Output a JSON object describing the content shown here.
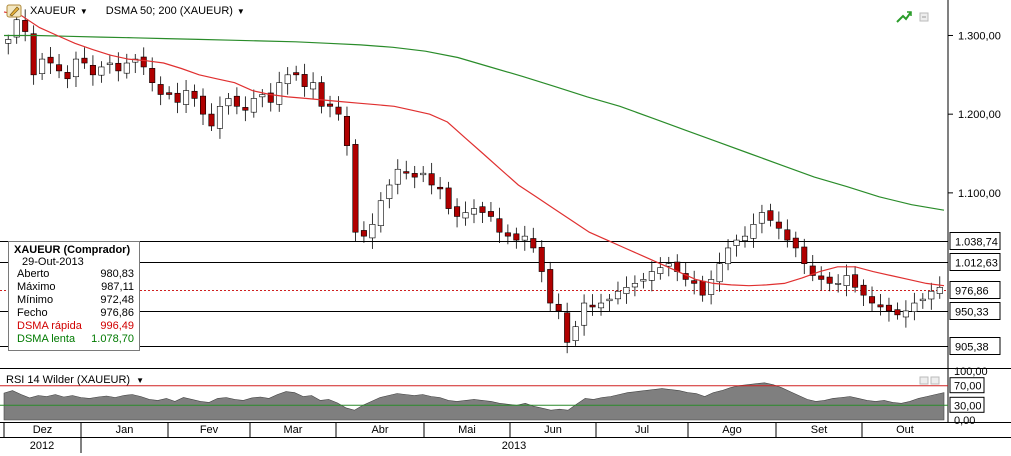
{
  "toolbar": {
    "symbol": "XAUEUR",
    "indicator": "DSMA 50; 200 (XAUEUR)"
  },
  "info_box": {
    "title": "XAUEUR (Comprador)",
    "date": "29-Out-2013",
    "rows": [
      {
        "label": "Aberto",
        "value": "980,83"
      },
      {
        "label": "Máximo",
        "value": "987,11"
      },
      {
        "label": "Mínimo",
        "value": "972,48"
      },
      {
        "label": "Fecho",
        "value": "976,86"
      },
      {
        "label": "DSMA rápida",
        "value": "996,49"
      },
      {
        "label": "DSMA lenta",
        "value": "1.078,70"
      }
    ]
  },
  "rsi": {
    "title": "RSI 14 Wilder (XAUEUR)",
    "axis_labels": [
      "100,00",
      "70,00",
      "30,00",
      "0,00"
    ]
  },
  "colors": {
    "fast_ma": "#e03030",
    "slow_ma": "#2a8c2a",
    "up_candle": "#ffffff",
    "down_candle": "#b00000",
    "rsi_fill": "#7f7f7f"
  },
  "chart_data": {
    "type": "candlestick",
    "symbol": "XAUEUR",
    "y_axis_labels": [
      "1.300,00",
      "1.200,00",
      "1.100,00"
    ],
    "ylim": [
      880,
      1340
    ],
    "price_levels": [
      {
        "label": "1.038,74",
        "value": 1038.74
      },
      {
        "label": "1.012,63",
        "value": 1012.63
      },
      {
        "label": "976,86",
        "value": 976.86
      },
      {
        "label": "950,33",
        "value": 950.33
      },
      {
        "label": "905,38",
        "value": 905.38
      }
    ],
    "x_month_labels": [
      "Dez",
      "Jan",
      "Fev",
      "Mar",
      "Abr",
      "Mai",
      "Jun",
      "Jul",
      "Ago",
      "Set",
      "Out"
    ],
    "x_year_labels": [
      "2012",
      "2013"
    ],
    "close_path": [
      1295,
      1320,
      1305,
      1250,
      1270,
      1265,
      1255,
      1245,
      1270,
      1265,
      1250,
      1260,
      1265,
      1255,
      1265,
      1270,
      1260,
      1240,
      1225,
      1225,
      1215,
      1230,
      1220,
      1200,
      1185,
      1210,
      1220,
      1210,
      1205,
      1220,
      1225,
      1215,
      1240,
      1250,
      1250,
      1235,
      1240,
      1210,
      1210,
      1200,
      1160,
      1050,
      1045,
      1060,
      1090,
      1110,
      1130,
      1125,
      1120,
      1125,
      1110,
      1105,
      1080,
      1070,
      1075,
      1080,
      1075,
      1070,
      1050,
      1045,
      1040,
      1045,
      1030,
      1000,
      960,
      950,
      910,
      930,
      960,
      955,
      960,
      965,
      975,
      980,
      985,
      990,
      1000,
      1005,
      1010,
      1000,
      990,
      985,
      970,
      990,
      1010,
      1030,
      1040,
      1045,
      1060,
      1075,
      1065,
      1055,
      1040,
      1030,
      1010,
      995,
      990,
      985,
      985,
      995,
      980,
      970,
      960,
      955,
      950,
      945,
      950,
      960,
      965,
      975,
      980
    ],
    "fast_ma_path": [
      1330,
      1325,
      1310,
      1300,
      1290,
      1282,
      1275,
      1270,
      1268,
      1265,
      1258,
      1250,
      1245,
      1240,
      1230,
      1225,
      1222,
      1220,
      1218,
      1216,
      1214,
      1212,
      1210,
      1205,
      1200,
      1190,
      1170,
      1150,
      1130,
      1110,
      1095,
      1080,
      1065,
      1050,
      1040,
      1030,
      1020,
      1010,
      1000,
      990,
      985,
      983,
      982,
      983,
      985,
      992,
      1000,
      1006,
      1006,
      1000,
      995,
      990,
      985,
      982
    ],
    "slow_ma_path": [
      1300,
      1300,
      1299,
      1298,
      1297,
      1296,
      1295,
      1294,
      1293,
      1292,
      1290,
      1288,
      1285,
      1280,
      1272,
      1260,
      1248,
      1235,
      1222,
      1210,
      1195,
      1180,
      1165,
      1150,
      1135,
      1120,
      1108,
      1095,
      1085,
      1078
    ],
    "rsi_path": [
      55,
      60,
      52,
      45,
      50,
      48,
      52,
      47,
      50,
      46,
      44,
      47,
      49,
      46,
      50,
      52,
      48,
      42,
      40,
      44,
      38,
      46,
      42,
      38,
      36,
      44,
      46,
      42,
      40,
      45,
      47,
      44,
      52,
      58,
      56,
      48,
      50,
      40,
      42,
      35,
      25,
      20,
      30,
      38,
      46,
      50,
      54,
      52,
      50,
      52,
      48,
      46,
      40,
      38,
      40,
      42,
      40,
      38,
      34,
      32,
      30,
      34,
      28,
      24,
      20,
      22,
      20,
      32,
      44,
      42,
      46,
      48,
      52,
      56,
      58,
      60,
      62,
      64,
      62,
      60,
      56,
      54,
      48,
      56,
      60,
      66,
      70,
      72,
      74,
      76,
      72,
      66,
      58,
      50,
      42,
      38,
      40,
      44,
      46,
      48,
      44,
      40,
      38,
      40,
      36,
      34,
      38,
      44,
      48,
      52,
      56
    ]
  }
}
